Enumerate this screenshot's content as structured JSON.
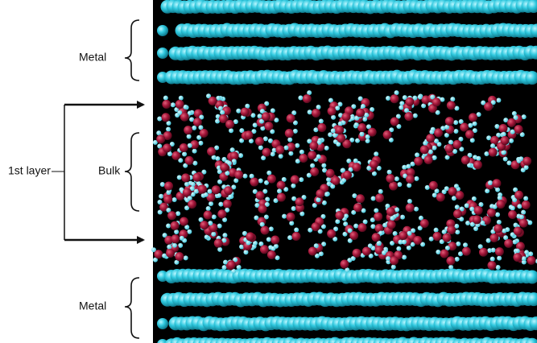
{
  "labels": {
    "metal_top": "Metal",
    "first_layer": "1st layer",
    "bulk": "Bulk",
    "metal_bottom": "Metal"
  }
}
